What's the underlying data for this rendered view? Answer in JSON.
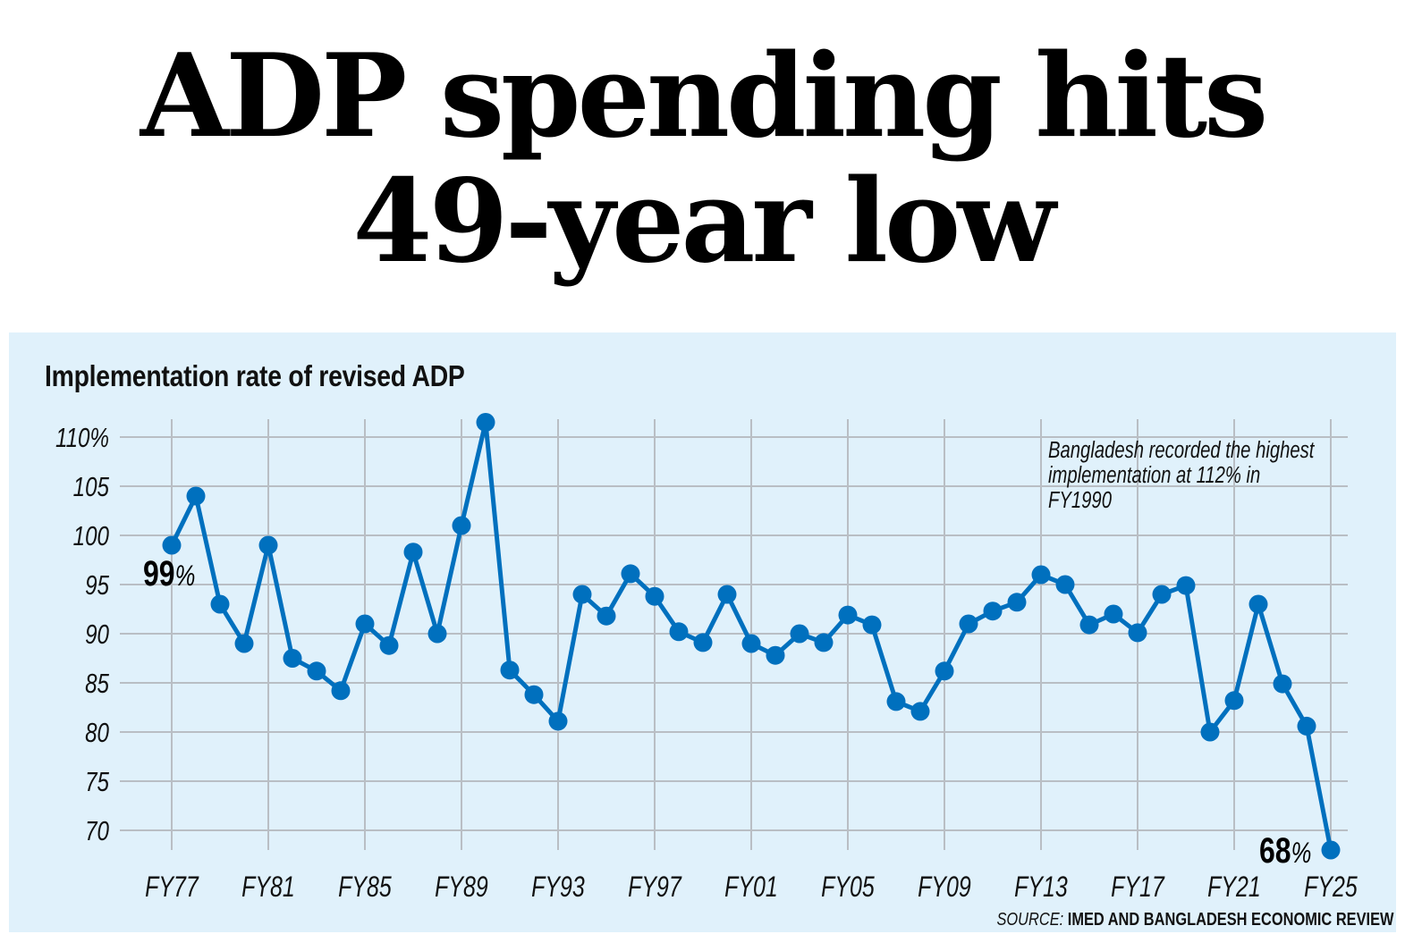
{
  "headline": {
    "line1": "ADP spending hits",
    "line2": "49-year low"
  },
  "source": {
    "label": "SOURCE:",
    "text": "IMED AND BANGLADESH ECONOMIC REVIEW"
  },
  "chart_data": {
    "type": "line",
    "title": "Implementation rate of revised ADP",
    "xlabel": "",
    "ylabel": "",
    "ylim": [
      70,
      110
    ],
    "yticks": [
      70,
      75,
      80,
      85,
      90,
      95,
      100,
      105,
      110
    ],
    "ytick_labels": [
      "70",
      "75",
      "80",
      "85",
      "90",
      "95",
      "100",
      "105",
      "110%"
    ],
    "xtick_labels": [
      "FY77",
      "FY81",
      "FY85",
      "FY89",
      "FY93",
      "FY97",
      "FY01",
      "FY05",
      "FY09",
      "FY13",
      "FY17",
      "FY21",
      "FY25"
    ],
    "grid": true,
    "color": "#0070be",
    "x": [
      "FY77",
      "FY78",
      "FY79",
      "FY80",
      "FY81",
      "FY82",
      "FY83",
      "FY84",
      "FY85",
      "FY86",
      "FY87",
      "FY88",
      "FY89",
      "FY90",
      "FY91",
      "FY92",
      "FY93",
      "FY94",
      "FY95",
      "FY96",
      "FY97",
      "FY98",
      "FY99",
      "FY00",
      "FY01",
      "FY02",
      "FY03",
      "FY04",
      "FY05",
      "FY06",
      "FY07",
      "FY08",
      "FY09",
      "FY10",
      "FY11",
      "FY12",
      "FY13",
      "FY14",
      "FY15",
      "FY16",
      "FY17",
      "FY18",
      "FY19",
      "FY20",
      "FY21",
      "FY22",
      "FY23",
      "FY24",
      "FY25"
    ],
    "series": [
      {
        "name": "Implementation rate (%)",
        "values": [
          99,
          104,
          93,
          89,
          99,
          87.5,
          86.2,
          84.2,
          91,
          88.8,
          98.3,
          90,
          101,
          111.5,
          86.3,
          83.8,
          81.1,
          94,
          91.8,
          96.1,
          93.8,
          90.2,
          89.1,
          94,
          89,
          87.8,
          90,
          89.1,
          91.9,
          90.9,
          83.1,
          82.1,
          86.2,
          91,
          92.3,
          93.2,
          96,
          95,
          90.9,
          92,
          90.1,
          94,
          94.9,
          80,
          83.2,
          93,
          84.9,
          80.6,
          68
        ]
      }
    ],
    "annotations": [
      {
        "target": "FY77",
        "value_label": "99",
        "suffix": "%"
      },
      {
        "target": "FY25",
        "value_label": "68",
        "suffix": "%"
      },
      {
        "target": "note",
        "lines": [
          "Bangladesh recorded the highest",
          "implementation at 112% in",
          "FY1990"
        ]
      }
    ]
  }
}
